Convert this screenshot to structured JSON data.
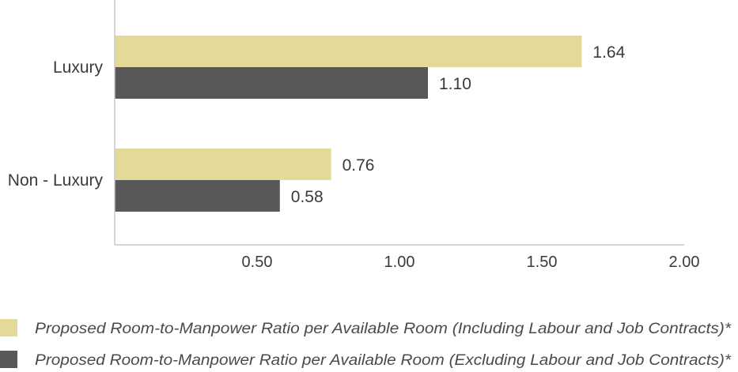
{
  "chart_data": {
    "type": "bar",
    "orientation": "horizontal",
    "categories": [
      "Luxury",
      "Non - Luxury"
    ],
    "series": [
      {
        "name": "Proposed Room-to-Manpower Ratio per Available Room (Including Labour and Job Contracts)*",
        "values": [
          1.64,
          0.76
        ],
        "labels": [
          "1.64",
          "0.76"
        ],
        "color": "#e3d99a"
      },
      {
        "name": "Proposed Room-to-Manpower Ratio per Available Room (Excluding Labour and Job Contracts)*",
        "values": [
          1.1,
          0.58
        ],
        "labels": [
          "1.10",
          "0.58"
        ],
        "color": "#58585a"
      }
    ],
    "xlim": [
      0,
      2.0
    ],
    "xticks": [
      0.5,
      1.0,
      1.5,
      2.0
    ],
    "xtick_labels": [
      "0.50",
      "1.00",
      "1.50",
      "2.00"
    ],
    "grid": false,
    "legend_position": "bottom-left",
    "axis_color": "#c8c8c8",
    "text_color": "#3a3a3a"
  }
}
